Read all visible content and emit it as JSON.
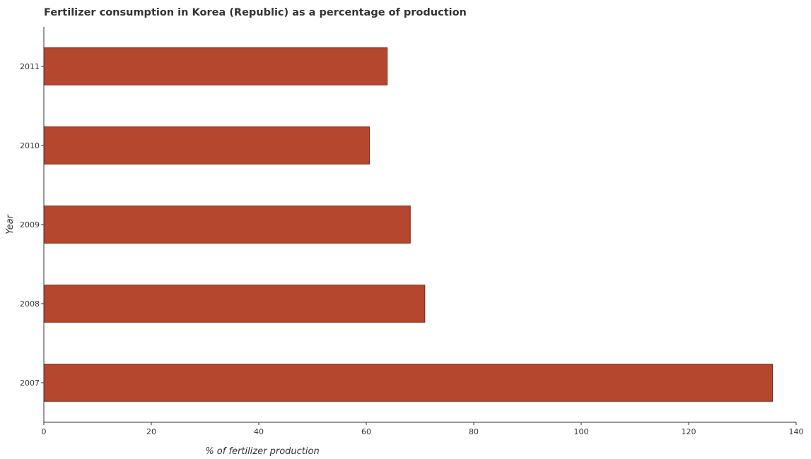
{
  "chart_data": {
    "type": "bar",
    "orientation": "horizontal",
    "title": "Fertilizer consumption in Korea (Republic) as a percentage of production",
    "xlabel": "% of fertilizer production",
    "ylabel": "Year",
    "categories": [
      "2007",
      "2008",
      "2009",
      "2010",
      "2011"
    ],
    "values": [
      135.6,
      70.9,
      68.2,
      60.6,
      63.9
    ],
    "xlim": [
      0,
      140
    ],
    "xticks": [
      0,
      20,
      40,
      60,
      80,
      100,
      120,
      140
    ],
    "grid": false,
    "bar_color": "#b5472e",
    "bar_edge_color": "#7a2a16"
  }
}
